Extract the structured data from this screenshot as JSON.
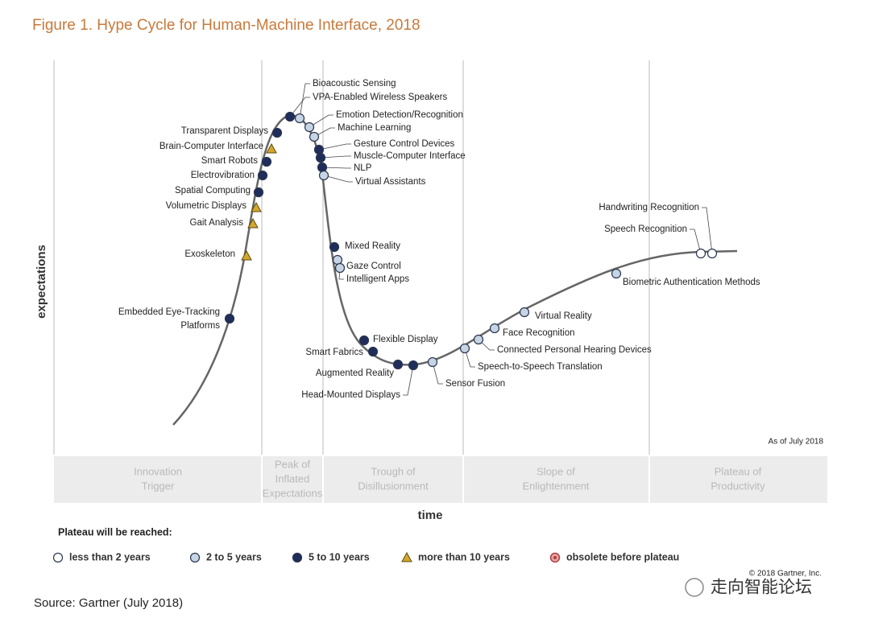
{
  "header": {
    "title": "Figure 1. Hype Cycle for Human-Machine Interface, 2018"
  },
  "axes": {
    "y_label": "expectations",
    "x_label": "time",
    "as_of": "As of July 2018"
  },
  "phases": [
    {
      "label": [
        "Innovation",
        "Trigger"
      ]
    },
    {
      "label": [
        "Peak of",
        "Inflated",
        "Expectations"
      ]
    },
    {
      "label": [
        "Trough of",
        "Disillusionment"
      ]
    },
    {
      "label": [
        "Slope of",
        "Enlightenment"
      ]
    },
    {
      "label": [
        "Plateau of",
        "Productivity"
      ]
    }
  ],
  "nodes": [
    {
      "label": [
        "Bioacoustic Sensing"
      ],
      "color": "#c5d5e4",
      "shape": "circle"
    },
    {
      "label": [
        "VPA-Enabled Wireless Speakers"
      ],
      "color": "#1f2d5a",
      "shape": "circle"
    },
    {
      "label": [
        "Emotion Detection/Recognition"
      ],
      "color": "#c5d5e4",
      "shape": "circle"
    },
    {
      "label": [
        "Machine Learning"
      ],
      "color": "#c5d5e4",
      "shape": "circle"
    },
    {
      "label": [
        "Gesture Control Devices"
      ],
      "color": "#1f2d5a",
      "shape": "circle"
    },
    {
      "label": [
        "Muscle-Computer Interface"
      ],
      "color": "#1f2d5a",
      "shape": "circle"
    },
    {
      "label": [
        "NLP"
      ],
      "color": "#1f2d5a",
      "shape": "circle"
    },
    {
      "label": [
        "Virtual Assistants"
      ],
      "color": "#c5d5e4",
      "shape": "circle"
    },
    {
      "label": [
        "Transparent Displays"
      ],
      "color": "#1f2d5a",
      "shape": "circle"
    },
    {
      "label": [
        "Brain-Computer Interface"
      ],
      "color": "#d4a72c",
      "shape": "triangle"
    },
    {
      "label": [
        "Smart Robots"
      ],
      "color": "#1f2d5a",
      "shape": "circle"
    },
    {
      "label": [
        "Electrovibration"
      ],
      "color": "#1f2d5a",
      "shape": "circle"
    },
    {
      "label": [
        "Spatial Computing"
      ],
      "color": "#1f2d5a",
      "shape": "circle"
    },
    {
      "label": [
        "Volumetric Displays"
      ],
      "color": "#d4a72c",
      "shape": "triangle"
    },
    {
      "label": [
        "Gait Analysis"
      ],
      "color": "#d4a72c",
      "shape": "triangle"
    },
    {
      "label": [
        "Exoskeleton"
      ],
      "color": "#d4a72c",
      "shape": "triangle"
    },
    {
      "label": [
        "Embedded Eye-Tracking",
        "Platforms"
      ],
      "color": "#1f2d5a",
      "shape": "circle"
    },
    {
      "label": [
        "Mixed Reality"
      ],
      "color": "#1f2d5a",
      "shape": "circle"
    },
    {
      "label": [
        "Gaze Control"
      ],
      "color": "#c5d5e4",
      "shape": "circle"
    },
    {
      "label": [
        "Intelligent Apps"
      ],
      "color": "#c5d5e4",
      "shape": "circle"
    },
    {
      "label": [
        "Flexible Display"
      ],
      "color": "#1f2d5a",
      "shape": "circle"
    },
    {
      "label": [
        "Smart Fabrics"
      ],
      "color": "#1f2d5a",
      "shape": "circle"
    },
    {
      "label": [
        "Augmented Reality"
      ],
      "color": "#1f2d5a",
      "shape": "circle"
    },
    {
      "label": [
        "Head-Mounted Displays"
      ],
      "color": "#1f2d5a",
      "shape": "circle"
    },
    {
      "label": [
        "Sensor Fusion"
      ],
      "color": "#c5d5e4",
      "shape": "circle"
    },
    {
      "label": [
        "Speech-to-Speech Translation"
      ],
      "color": "#c5d5e4",
      "shape": "circle"
    },
    {
      "label": [
        "Connected Personal Hearing Devices"
      ],
      "color": "#c5d5e4",
      "shape": "circle"
    },
    {
      "label": [
        "Face Recognition"
      ],
      "color": "#c5d5e4",
      "shape": "circle"
    },
    {
      "label": [
        "Virtual Reality"
      ],
      "color": "#c5d5e4",
      "shape": "circle"
    },
    {
      "label": [
        "Biometric Authentication Methods"
      ],
      "color": "#c5d5e4",
      "shape": "circle"
    },
    {
      "label": [
        "Speech Recognition"
      ],
      "color": "#ffffff",
      "shape": "circle"
    },
    {
      "label": [
        "Handwriting Recognition"
      ],
      "color": "#ffffff",
      "shape": "circle"
    }
  ],
  "legend": {
    "title": "Plateau will be reached:",
    "items": [
      {
        "label": "less than 2 years",
        "color": "#ffffff",
        "shape": "circle"
      },
      {
        "label": "2 to 5 years",
        "color": "#c5d5e4",
        "shape": "circle"
      },
      {
        "label": "5 to 10 years",
        "color": "#1f2d5a",
        "shape": "circle"
      },
      {
        "label": "more than 10 years",
        "color": "#d4a72c",
        "shape": "triangle"
      },
      {
        "label": "obsolete before plateau",
        "color": "#e9a3a3",
        "shape": "ring"
      }
    ]
  },
  "footer": {
    "copyright": "© 2018 Gartner, Inc.",
    "source": "Source: Gartner (July 2018)",
    "watermark": "走向智能论坛"
  }
}
